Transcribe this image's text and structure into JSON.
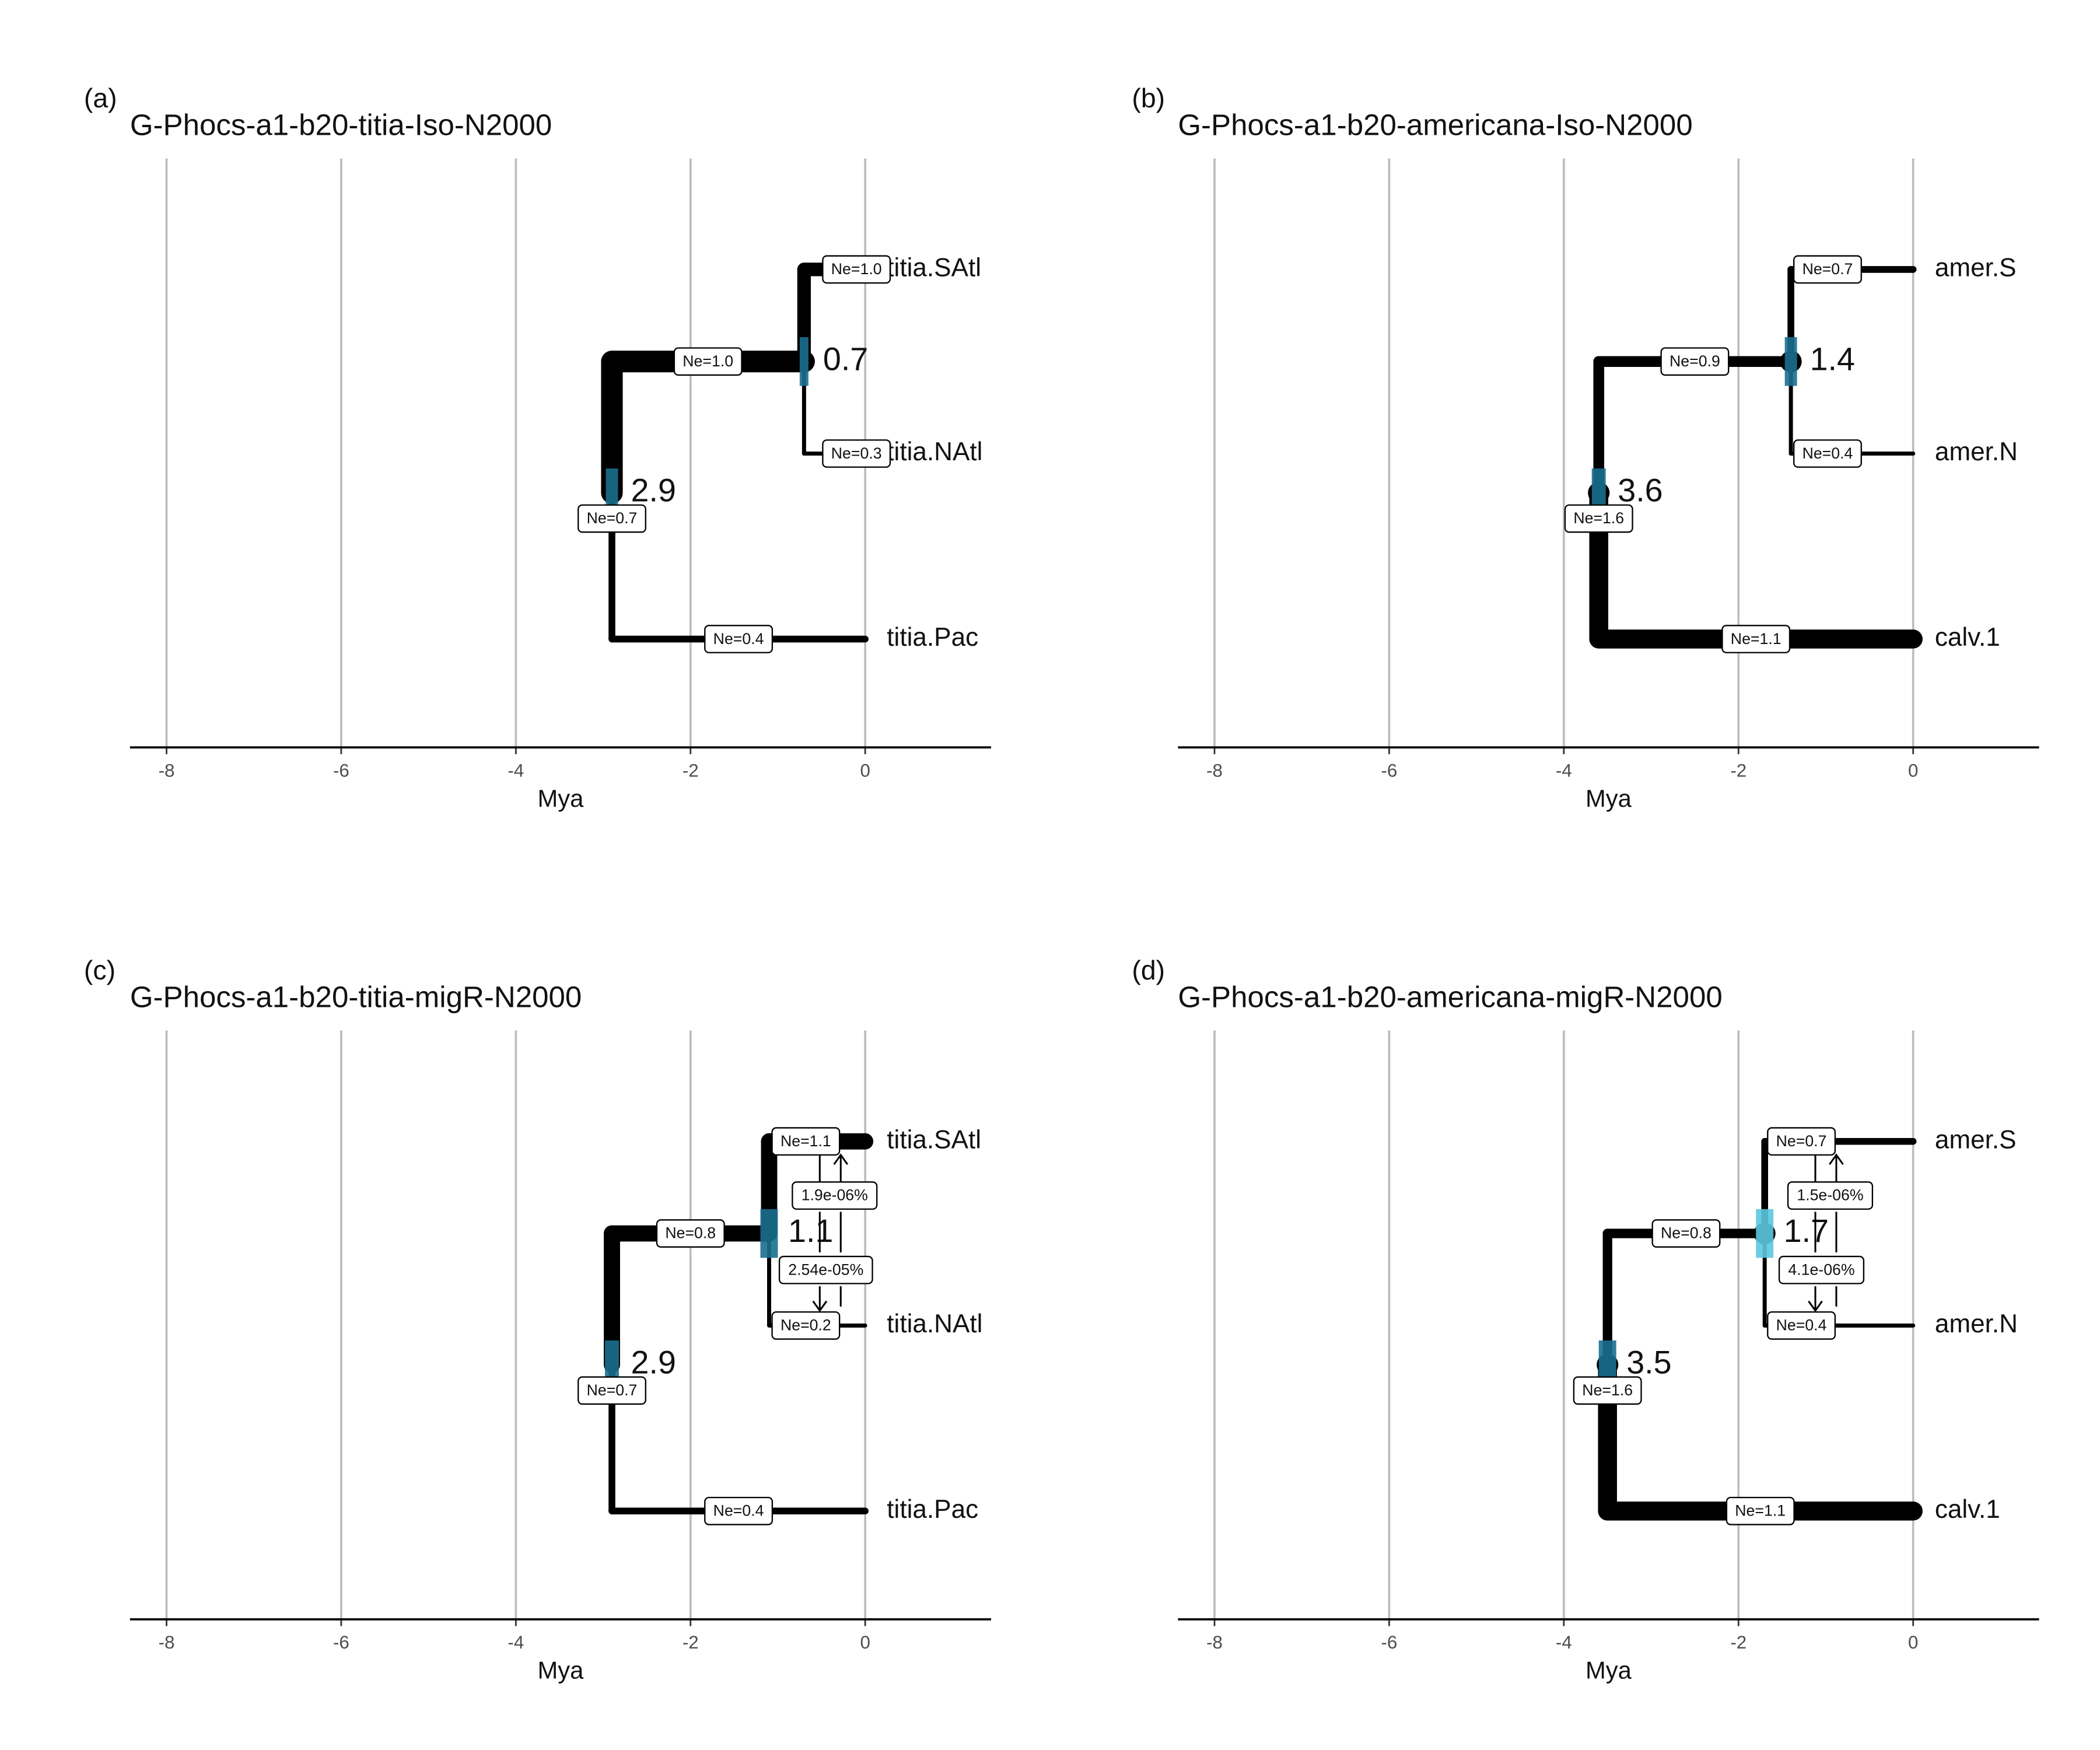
{
  "panels": [
    {
      "panel_label": "(a)",
      "title": "G-Phocs-a1-b20-titia-Iso-N2000",
      "xlabel": "Mya",
      "x_ticks": [
        "-8",
        "-6",
        "-4",
        "-2",
        "0"
      ],
      "tips": [
        "titia.SAtl",
        "titia.NAtl",
        "titia.Pac"
      ],
      "nodes": [
        {
          "age_label": "0.7",
          "age": -0.7,
          "ci": [
            -0.75,
            -0.65
          ]
        },
        {
          "age_label": "2.9",
          "age": -2.9,
          "ci": [
            -2.97,
            -2.83
          ]
        }
      ],
      "ne_labels": [
        "Ne=1.0",
        "Ne=0.3",
        "Ne=1.0",
        "Ne=0.7",
        "Ne=0.4"
      ],
      "migration_labels": []
    },
    {
      "panel_label": "(b)",
      "title": "G-Phocs-a1-b20-americana-Iso-N2000",
      "xlabel": "Mya",
      "x_ticks": [
        "-8",
        "-6",
        "-4",
        "-2",
        "0"
      ],
      "tips": [
        "amer.S",
        "amer.N",
        "calv.1"
      ],
      "nodes": [
        {
          "age_label": "1.4",
          "age": -1.4,
          "ci": [
            -1.47,
            -1.33
          ]
        },
        {
          "age_label": "3.6",
          "age": -3.6,
          "ci": [
            -3.68,
            -3.52
          ]
        }
      ],
      "ne_labels": [
        "Ne=0.7",
        "Ne=0.4",
        "Ne=0.9",
        "Ne=1.6",
        "Ne=1.1"
      ],
      "migration_labels": []
    },
    {
      "panel_label": "(c)",
      "title": "G-Phocs-a1-b20-titia-migR-N2000",
      "xlabel": "Mya",
      "x_ticks": [
        "-8",
        "-6",
        "-4",
        "-2",
        "0"
      ],
      "tips": [
        "titia.SAtl",
        "titia.NAtl",
        "titia.Pac"
      ],
      "nodes": [
        {
          "age_label": "1.1",
          "age": -1.1,
          "ci": [
            -1.2,
            -1.0
          ]
        },
        {
          "age_label": "2.9",
          "age": -2.9,
          "ci": [
            -2.98,
            -2.82
          ]
        }
      ],
      "ne_labels": [
        "Ne=1.1",
        "Ne=0.2",
        "Ne=0.8",
        "Ne=0.7",
        "Ne=0.4"
      ],
      "migration_labels": [
        "1.9e-06%",
        "2.54e-05%"
      ]
    },
    {
      "panel_label": "(d)",
      "title": "G-Phocs-a1-b20-americana-migR-N2000",
      "xlabel": "Mya",
      "x_ticks": [
        "-8",
        "-6",
        "-4",
        "-2",
        "0"
      ],
      "tips": [
        "amer.S",
        "amer.N",
        "calv.1"
      ],
      "nodes": [
        {
          "age_label": "1.7",
          "age": -1.7,
          "ci": [
            -1.8,
            -1.6
          ]
        },
        {
          "age_label": "3.5",
          "age": -3.5,
          "ci": [
            -3.6,
            -3.4
          ]
        }
      ],
      "ne_labels": [
        "Ne=0.7",
        "Ne=0.4",
        "Ne=0.8",
        "Ne=1.6",
        "Ne=1.1"
      ],
      "migration_labels": [
        "1.5e-06%",
        "4.1e-06%"
      ]
    }
  ]
}
